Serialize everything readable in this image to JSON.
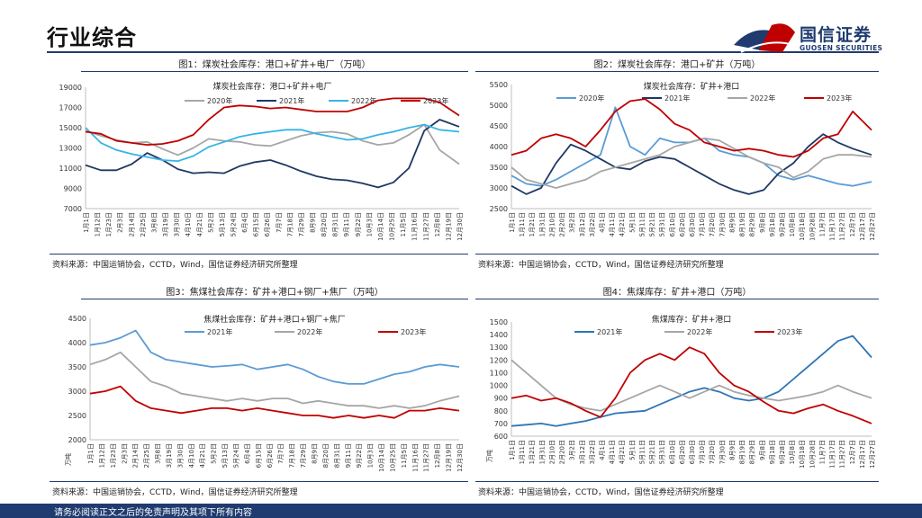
{
  "header": {
    "title": "行业综合",
    "logo_cn": "国信证券",
    "logo_en": "GUOSEN SECURITIES"
  },
  "footer": {
    "text": "请务必阅读正文之后的免责声明及其项下所有内容"
  },
  "colors": {
    "c2020": "#a6a6a6",
    "c2021": "#1f3864",
    "c2022": "#36b4e5",
    "c2023": "#c00000",
    "blue2021": "#2e75b6",
    "brand": "#1f3b6f"
  },
  "chart_data": [
    {
      "type": "line",
      "caption": "图1：煤炭社会库存：港口+矿井+电厂（万吨）",
      "title": "煤炭社会库存：港口+矿井+电厂",
      "source": "资料来源：中国运销协会，CCTD，Wind，国信证券经济研究所整理",
      "ylim": [
        7000,
        19000
      ],
      "yticks": [
        7000,
        9000,
        11000,
        13000,
        15000,
        17000,
        19000
      ],
      "ylabel": "",
      "xticks": [
        "1月1日",
        "1月12日",
        "1月23日",
        "2月3日",
        "2月14日",
        "2月25日",
        "3月8日",
        "3月19日",
        "3月30日",
        "4月10日",
        "4月21日",
        "5月2日",
        "5月13日",
        "5月24日",
        "6月4日",
        "6月15日",
        "6月26日",
        "7月7日",
        "7月18日",
        "7月29日",
        "8月9日",
        "8月20日",
        "8月31日",
        "9月11日",
        "9月22日",
        "10月3日",
        "10月14日",
        "10月25日",
        "11月5日",
        "11月16日",
        "11月27日",
        "12月8日",
        "12月19日",
        "12月30日"
      ],
      "x": [
        0,
        15,
        30,
        45,
        60,
        75,
        90,
        105,
        120,
        135,
        150,
        165,
        180,
        195,
        210,
        225,
        240,
        255,
        270,
        285,
        300,
        315,
        330,
        345,
        364
      ],
      "series": [
        {
          "name": "2020年",
          "color": "#a6a6a6",
          "values": [
            14700,
            14200,
            13800,
            13500,
            13600,
            12900,
            12300,
            13000,
            13900,
            13700,
            13600,
            13300,
            13200,
            13700,
            14200,
            14500,
            14600,
            14400,
            13700,
            13300,
            13500,
            14300,
            15300,
            12800,
            11400
          ],
          "end": 364
        },
        {
          "name": "2021年",
          "color": "#1f3864",
          "values": [
            11300,
            10800,
            10800,
            11400,
            12500,
            11800,
            10900,
            10500,
            10600,
            10500,
            11200,
            11600,
            11800,
            11300,
            10700,
            10200,
            9900,
            9800,
            9500,
            9100,
            9600,
            11000,
            14700,
            15800,
            15100
          ],
          "end": 364
        },
        {
          "name": "2022年",
          "color": "#36b4e5",
          "values": [
            15000,
            13500,
            12800,
            12400,
            12100,
            11800,
            11700,
            12200,
            13100,
            13600,
            14100,
            14400,
            14600,
            14800,
            14800,
            14400,
            14100,
            13800,
            13900,
            14300,
            14600,
            15000,
            15300,
            14800,
            14600
          ],
          "end": 364
        },
        {
          "name": "2023年",
          "color": "#c00000",
          "values": [
            14600,
            14400,
            13700,
            13500,
            13300,
            13400,
            13700,
            14300,
            15800,
            17000,
            17200,
            17100,
            16900,
            17000,
            16800,
            16600,
            16600,
            16600,
            17000,
            17700,
            17900,
            17900,
            17900,
            17500,
            16200
          ],
          "end": 364
        }
      ]
    },
    {
      "type": "line",
      "caption": "图2：煤炭社会库存：港口+矿井（万吨）",
      "title": "煤炭社会库存：矿井+港口",
      "source": "资料来源：中国运销协会，CCTD，Wind，国信证券经济研究所整理",
      "ylim": [
        2500,
        5500
      ],
      "yticks": [
        2500,
        3000,
        3500,
        4000,
        4500,
        5000,
        5500
      ],
      "ylabel": "",
      "xticks": [
        "1月1日",
        "1月11日",
        "1月21日",
        "1月31日",
        "2月10日",
        "2月20日",
        "3月2日",
        "3月12日",
        "3月22日",
        "4月1日",
        "4月11日",
        "4月21日",
        "5月1日",
        "5月11日",
        "5月21日",
        "5月31日",
        "6月10日",
        "6月20日",
        "6月30日",
        "7月10日",
        "7月20日",
        "7月30日",
        "8月9日",
        "8月19日",
        "8月29日",
        "9月8日",
        "9月18日",
        "9月28日",
        "10月8日",
        "10月18日",
        "10月28日",
        "11月7日",
        "11月17日",
        "11月27日",
        "12月7日",
        "12月17日",
        "12月27日"
      ],
      "x": [
        0,
        15,
        30,
        45,
        60,
        75,
        90,
        105,
        120,
        135,
        150,
        165,
        180,
        195,
        210,
        225,
        240,
        255,
        270,
        285,
        300,
        315,
        330,
        345,
        364
      ],
      "series": [
        {
          "name": "2020年",
          "color": "#5b9bd5",
          "values": [
            3300,
            3100,
            3050,
            3200,
            3400,
            3600,
            3800,
            4950,
            4000,
            3800,
            4200,
            4100,
            4100,
            4200,
            3900,
            3800,
            3750,
            3600,
            3300,
            3200,
            3300,
            3200,
            3100,
            3050,
            3150
          ],
          "end": 364
        },
        {
          "name": "2021年",
          "color": "#1f3864",
          "values": [
            3050,
            2850,
            3000,
            3600,
            4050,
            3900,
            3700,
            3500,
            3450,
            3650,
            3750,
            3700,
            3500,
            3300,
            3100,
            2950,
            2850,
            2950,
            3350,
            3600,
            4000,
            4300,
            4100,
            3950,
            3800
          ],
          "end": 364
        },
        {
          "name": "2022年",
          "color": "#a6a6a6",
          "values": [
            3500,
            3200,
            3100,
            3000,
            3100,
            3200,
            3400,
            3500,
            3600,
            3700,
            3800,
            4000,
            4100,
            4200,
            4150,
            3950,
            3750,
            3600,
            3500,
            3250,
            3400,
            3700,
            3800,
            3800,
            3750
          ],
          "end": 364
        },
        {
          "name": "2023年",
          "color": "#c00000",
          "values": [
            3800,
            3900,
            4200,
            4300,
            4200,
            4000,
            4400,
            4850,
            5100,
            5150,
            4900,
            4550,
            4400,
            4100,
            4000,
            3900,
            3950,
            3900,
            3800,
            3750,
            3900,
            4200,
            4300,
            4850,
            4400
          ],
          "end": 364
        }
      ]
    },
    {
      "type": "line",
      "caption": "图3：焦煤社会库存：矿井+港口+钢厂+焦厂（万吨）",
      "title": "焦煤社会库存：矿井+港口+钢厂+焦厂",
      "source": "资料来源：中国运销协会，CCTD，Wind，国信证券经济研究所整理",
      "ylim": [
        2000,
        4500
      ],
      "yticks": [
        2000,
        2500,
        3000,
        3500,
        4000,
        4500
      ],
      "ylabel": "万吨",
      "xticks": [
        "1月1日",
        "1月12日",
        "1月23日",
        "2月3日",
        "2月14日",
        "2月25日",
        "3月8日",
        "3月19日",
        "3月30日",
        "4月10日",
        "4月21日",
        "5月2日",
        "5月13日",
        "5月24日",
        "6月4日",
        "6月15日",
        "6月26日",
        "7月7日",
        "7月18日",
        "7月29日",
        "8月9日",
        "8月20日",
        "8月31日",
        "9月11日",
        "9月22日",
        "10月3日",
        "10月14日",
        "10月25日",
        "11月5日",
        "11月16日",
        "11月27日",
        "12月8日",
        "12月19日",
        "12月30日"
      ],
      "x": [
        0,
        15,
        30,
        45,
        60,
        75,
        90,
        105,
        120,
        135,
        150,
        165,
        180,
        195,
        210,
        225,
        240,
        255,
        270,
        285,
        300,
        315,
        330,
        345,
        364
      ],
      "series": [
        {
          "name": "2021年",
          "color": "#5b9bd5",
          "values": [
            3950,
            4000,
            4100,
            4250,
            3800,
            3650,
            3600,
            3550,
            3500,
            3520,
            3550,
            3450,
            3500,
            3550,
            3450,
            3300,
            3200,
            3150,
            3150,
            3250,
            3350,
            3400,
            3500,
            3550,
            3500
          ],
          "end": 364
        },
        {
          "name": "2022年",
          "color": "#a6a6a6",
          "values": [
            3550,
            3650,
            3800,
            3500,
            3200,
            3100,
            2950,
            2900,
            2850,
            2800,
            2850,
            2800,
            2850,
            2850,
            2750,
            2800,
            2750,
            2700,
            2700,
            2650,
            2700,
            2650,
            2700,
            2800,
            2900
          ],
          "end": 364
        },
        {
          "name": "2023年",
          "color": "#c00000",
          "values": [
            2950,
            3000,
            3100,
            2800,
            2650,
            2600,
            2550,
            2600,
            2650,
            2650,
            2600,
            2650,
            2600,
            2550,
            2500,
            2500,
            2450,
            2500,
            2450,
            2500,
            2450,
            2600,
            2600,
            2650,
            2600
          ],
          "end": 364
        }
      ]
    },
    {
      "type": "line",
      "caption": "图4：焦煤库存：矿井+港口（万吨）",
      "title": "焦煤库存：矿井+港口",
      "source": "资料来源：中国运销协会，CCTD，Wind，国信证券经济研究所整理",
      "ylim": [
        600,
        1500
      ],
      "yticks": [
        600,
        700,
        800,
        900,
        1000,
        1100,
        1200,
        1300,
        1400,
        1500
      ],
      "ylabel": "万吨",
      "xticks": [
        "1月1日",
        "1月11日",
        "1月21日",
        "1月31日",
        "2月10日",
        "2月20日",
        "3月2日",
        "3月12日",
        "3月22日",
        "4月1日",
        "4月11日",
        "4月21日",
        "5月1日",
        "5月11日",
        "5月21日",
        "5月31日",
        "6月10日",
        "6月20日",
        "6月30日",
        "7月10日",
        "7月20日",
        "7月30日",
        "8月9日",
        "8月19日",
        "8月29日",
        "9月8日",
        "9月18日",
        "9月28日",
        "10月8日",
        "10月18日",
        "10月28日",
        "11月7日",
        "11月17日",
        "11月27日",
        "12月7日",
        "12月17日",
        "12月27日"
      ],
      "x": [
        0,
        15,
        30,
        45,
        60,
        75,
        90,
        105,
        120,
        135,
        150,
        165,
        180,
        195,
        210,
        225,
        240,
        255,
        270,
        285,
        300,
        315,
        330,
        345,
        364
      ],
      "series": [
        {
          "name": "2021年",
          "color": "#2e75b6",
          "values": [
            680,
            690,
            700,
            680,
            700,
            720,
            750,
            780,
            790,
            800,
            850,
            900,
            950,
            980,
            950,
            900,
            880,
            900,
            950,
            1050,
            1150,
            1250,
            1350,
            1390,
            1220
          ],
          "end": 364
        },
        {
          "name": "2022年",
          "color": "#a6a6a6",
          "values": [
            1200,
            1100,
            1000,
            900,
            850,
            820,
            800,
            850,
            900,
            950,
            1000,
            950,
            900,
            950,
            1000,
            950,
            920,
            900,
            880,
            900,
            920,
            950,
            1000,
            950,
            900
          ],
          "end": 364
        },
        {
          "name": "2023年",
          "color": "#c00000",
          "values": [
            900,
            920,
            880,
            900,
            860,
            800,
            750,
            900,
            1100,
            1200,
            1250,
            1200,
            1300,
            1250,
            1100,
            1000,
            950,
            870,
            800,
            780,
            820,
            850,
            800,
            760,
            700
          ],
          "end": 364
        }
      ]
    }
  ]
}
